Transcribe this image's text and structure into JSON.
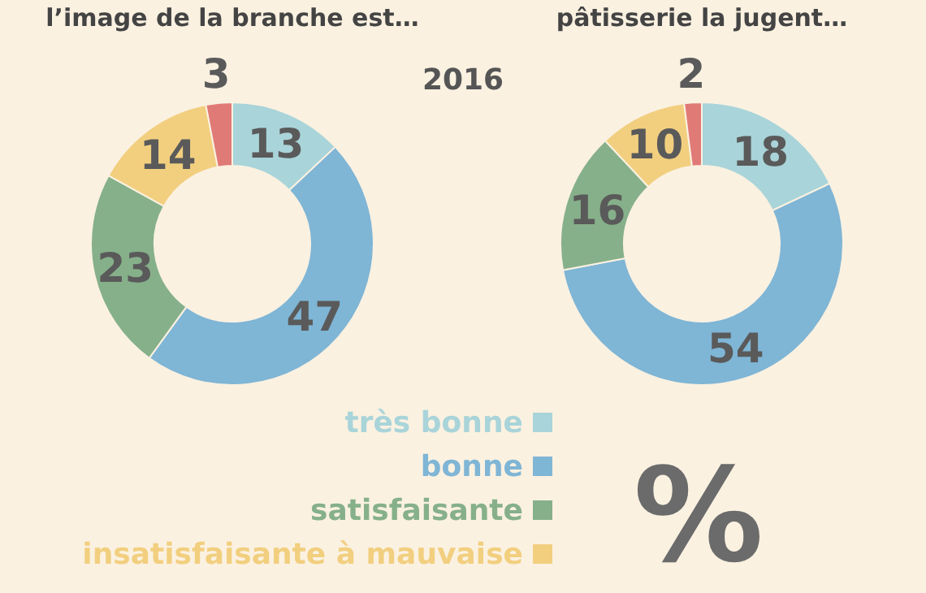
{
  "chart_data": [
    {
      "type": "donut",
      "title": "l’image de la branche est…",
      "categories": [
        "très bonne",
        "bonne",
        "satisfaisante",
        "insatisfaisante à mauvaise",
        null
      ],
      "values": [
        13,
        47,
        23,
        14,
        3
      ],
      "colors": [
        "#a9d4d9",
        "#7fb5d5",
        "#86b08a",
        "#f2cf7f",
        "#e07a76"
      ],
      "data_labels": true,
      "legend": "bottom",
      "annotations": [
        "2016"
      ]
    },
    {
      "type": "donut",
      "title": "pâtisserie la jugent…",
      "categories": [
        null,
        null,
        null,
        null,
        null
      ],
      "values": [
        18,
        54,
        16,
        10,
        2
      ],
      "colors": [
        "#a9d4d9",
        "#7fb5d5",
        "#86b08a",
        "#f2cf7f",
        "#e07a76"
      ],
      "data_labels": true,
      "annotations": [
        "%"
      ]
    }
  ]
}
